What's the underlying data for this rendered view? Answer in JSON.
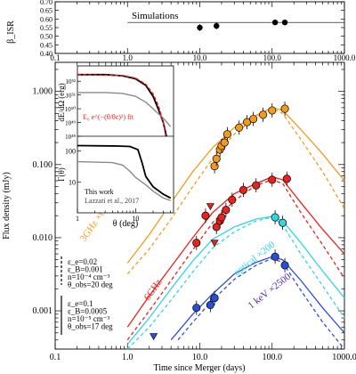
{
  "colors": {
    "orange": "#f39a1e",
    "red": "#e8221d",
    "cyan": "#32d4e6",
    "blue": "#2a4ed6",
    "gray": "#8a8a8a",
    "black": "#000000"
  },
  "chart_data": [
    {
      "type": "scatter",
      "panel": "top",
      "ylabel": "β_ISR",
      "xlim": [
        0.1,
        1000
      ],
      "ylim": [
        0.4,
        0.7
      ],
      "xscale": "log",
      "yticks": [
        "0.40",
        "0.45",
        "0.50",
        "0.55",
        "0.60",
        "0.65",
        "0.70"
      ],
      "annotation": "Simulations",
      "reference_line": {
        "y": 0.58,
        "x_range": [
          1,
          1000
        ]
      },
      "points": [
        {
          "x": 10,
          "y": 0.55,
          "yerr": 0.02
        },
        {
          "x": 17,
          "y": 0.56,
          "yerr": 0.02
        },
        {
          "x": 110,
          "y": 0.58,
          "yerr": 0.01
        },
        {
          "x": 150,
          "y": 0.58,
          "yerr": 0.01
        }
      ]
    },
    {
      "type": "line",
      "panel": "main",
      "xlabel": "Time since Merger (days)",
      "ylabel": "Flux density (mJy)",
      "xlim": [
        0.1,
        1000
      ],
      "ylim": [
        0.0003,
        2.5
      ],
      "xscale": "log",
      "yscale": "log",
      "xticks": [
        "0.1",
        "1.0",
        "10.0",
        "100.0",
        "1000.0"
      ],
      "yticks": [
        "0.001",
        "0.010",
        "0.100",
        "1.000"
      ],
      "legend": [
        {
          "style": "dashed",
          "lines": [
            "ε_e=0.02",
            "ε_B=0.001",
            "n=10⁻⁴ cm⁻³",
            "θ_obs=20 deg"
          ]
        },
        {
          "style": "solid",
          "lines": [
            "ε_e=0.1",
            "ε_B=0.0005",
            "n=10⁻⁵ cm⁻³",
            "θ_obs=17 deg"
          ]
        }
      ],
      "series": [
        {
          "name": "3GHz ×6",
          "color_key": "orange",
          "solid": [
            [
              1,
              0.0045
            ],
            [
              2,
              0.011
            ],
            [
              4,
              0.03
            ],
            [
              8,
              0.08
            ],
            [
              15,
              0.17
            ],
            [
              30,
              0.32
            ],
            [
              60,
              0.47
            ],
            [
              100,
              0.6
            ],
            [
              140,
              0.55
            ],
            [
              250,
              0.3
            ],
            [
              500,
              0.14
            ],
            [
              1000,
              0.06
            ]
          ],
          "dashed": [
            [
              1,
              0.0032
            ],
            [
              2,
              0.007
            ],
            [
              4,
              0.018
            ],
            [
              8,
              0.05
            ],
            [
              15,
              0.12
            ],
            [
              30,
              0.26
            ],
            [
              60,
              0.45
            ],
            [
              100,
              0.58
            ],
            [
              140,
              0.5
            ],
            [
              250,
              0.22
            ],
            [
              500,
              0.08
            ],
            [
              1000,
              0.025
            ]
          ],
          "points": [
            [
              16,
              0.095
            ],
            [
              17,
              0.12
            ],
            [
              19,
              0.16
            ],
            [
              20,
              0.18
            ],
            [
              22,
              0.2
            ],
            [
              24,
              0.26
            ],
            [
              35,
              0.32
            ],
            [
              45,
              0.38
            ],
            [
              55,
              0.42
            ],
            [
              75,
              0.48
            ],
            [
              100,
              0.55
            ],
            [
              150,
              0.58
            ]
          ]
        },
        {
          "name": "6GHz",
          "color_key": "red",
          "solid": [
            [
              1,
              0.0006
            ],
            [
              2,
              0.0016
            ],
            [
              4,
              0.004
            ],
            [
              8,
              0.01
            ],
            [
              15,
              0.022
            ],
            [
              30,
              0.04
            ],
            [
              60,
              0.055
            ],
            [
              100,
              0.068
            ],
            [
              140,
              0.062
            ],
            [
              250,
              0.03
            ],
            [
              500,
              0.013
            ],
            [
              1000,
              0.006
            ]
          ],
          "dashed": [
            [
              1,
              0.0004
            ],
            [
              2,
              0.001
            ],
            [
              4,
              0.0026
            ],
            [
              8,
              0.0068
            ],
            [
              15,
              0.016
            ],
            [
              30,
              0.032
            ],
            [
              60,
              0.052
            ],
            [
              100,
              0.062
            ],
            [
              140,
              0.055
            ],
            [
              250,
              0.022
            ],
            [
              500,
              0.008
            ],
            [
              1000,
              0.0028
            ]
          ],
          "points": [
            [
              9,
              0.0085
            ],
            [
              12,
              0.02
            ],
            [
              17,
              0.014
            ],
            [
              19,
              0.017
            ],
            [
              20,
              0.019
            ],
            [
              23,
              0.024
            ],
            [
              28,
              0.033
            ],
            [
              40,
              0.045
            ],
            [
              60,
              0.052
            ],
            [
              100,
              0.062
            ],
            [
              160,
              0.064
            ]
          ],
          "upper_limits": [
            [
              14,
              0.027
            ],
            [
              16,
              0.0085
            ]
          ]
        },
        {
          "name": "optical ×200",
          "color_key": "cyan",
          "solid": [
            [
              1,
              0.00035
            ],
            [
              2,
              0.0008
            ],
            [
              4,
              0.002
            ],
            [
              8,
              0.0048
            ],
            [
              15,
              0.0095
            ],
            [
              30,
              0.014
            ],
            [
              60,
              0.018
            ],
            [
              100,
              0.0195
            ],
            [
              140,
              0.017
            ],
            [
              250,
              0.0085
            ],
            [
              500,
              0.0035
            ],
            [
              1000,
              0.0015
            ]
          ],
          "dashed": [
            [
              1,
              0.0003
            ],
            [
              2,
              0.0006
            ],
            [
              4,
              0.0014
            ],
            [
              8,
              0.0034
            ],
            [
              15,
              0.0072
            ],
            [
              30,
              0.012
            ],
            [
              60,
              0.017
            ],
            [
              100,
              0.019
            ],
            [
              140,
              0.015
            ],
            [
              250,
              0.006
            ],
            [
              500,
              0.0022
            ],
            [
              1000,
              0.0008
            ]
          ],
          "points": [
            [
              110,
              0.019
            ],
            [
              140,
              0.016
            ]
          ]
        },
        {
          "name": "1 keV ×2500",
          "color_key": "blue",
          "solid": [
            [
              4,
              0.0004
            ],
            [
              8,
              0.0009
            ],
            [
              15,
              0.0017
            ],
            [
              30,
              0.0032
            ],
            [
              60,
              0.0046
            ],
            [
              100,
              0.0055
            ],
            [
              140,
              0.005
            ],
            [
              250,
              0.0026
            ],
            [
              500,
              0.0011
            ],
            [
              1000,
              0.0005
            ]
          ],
          "dashed": [
            [
              5,
              0.0004
            ],
            [
              8,
              0.0007
            ],
            [
              15,
              0.0014
            ],
            [
              30,
              0.0027
            ],
            [
              60,
              0.0042
            ],
            [
              100,
              0.0052
            ],
            [
              140,
              0.0046
            ],
            [
              250,
              0.0019
            ],
            [
              500,
              0.0007
            ],
            [
              1000,
              0.0003
            ]
          ],
          "points": [
            [
              9,
              0.0011
            ],
            [
              14,
              0.0012
            ],
            [
              16,
              0.0015
            ],
            [
              110,
              0.0055
            ],
            [
              150,
              0.0042
            ]
          ],
          "upper_limits": [
            [
              2.3,
              0.00045
            ]
          ]
        }
      ]
    },
    {
      "type": "line",
      "panel": "inset-top",
      "ylabel": "dE/dΩ (erg)",
      "yscale": "log",
      "xscale": "log",
      "ylim": [
        1e+48,
        1e+53
      ],
      "yticks": [
        "10⁴⁸",
        "10⁴⁹",
        "10⁵⁰",
        "10⁵¹",
        "10⁵²"
      ],
      "annotation": "E₀ e^(−(θ/θc)²) fit",
      "series": [
        {
          "name": "",
          "color_key": "black",
          "points": [
            [
              1,
              3e+52
            ],
            [
              3,
              3e+52
            ],
            [
              6,
              2.5e+52
            ],
            [
              10,
              1.5e+52
            ],
            [
              15,
              5e+51
            ],
            [
              20,
              8e+50
            ],
            [
              25,
              8e+49
            ],
            [
              30,
              1e+49
            ],
            [
              34,
              1e+48
            ]
          ]
        },
        {
          "name": "",
          "color_key": "gray",
          "points": [
            [
              1,
              1.5e+51
            ],
            [
              3,
              1.5e+51
            ],
            [
              6,
              1.3e+51
            ],
            [
              10,
              8e+50
            ],
            [
              15,
              3e+50
            ],
            [
              20,
              1e+50
            ],
            [
              30,
              2e+49
            ],
            [
              40,
              5e+48
            ]
          ]
        },
        {
          "name": "",
          "color_key": "red",
          "style": "dashed",
          "points": [
            [
              1,
              3e+52
            ],
            [
              6,
              2.6e+52
            ],
            [
              10,
              1.7e+52
            ],
            [
              15,
              6e+51
            ],
            [
              20,
              1.2e+51
            ],
            [
              25,
              1.5e+50
            ],
            [
              30,
              1e+49
            ],
            [
              33,
              1e+48
            ]
          ]
        }
      ]
    },
    {
      "type": "line",
      "panel": "inset-bottom",
      "xlabel": "θ (deg)",
      "ylabel": "Γ(θ)",
      "xscale": "log",
      "yscale": "log",
      "ylim": [
        1,
        300
      ],
      "yticks": [
        "10",
        "100"
      ],
      "xticks": [
        "1",
        "10"
      ],
      "legend": [
        "This work",
        "Lazzati et al., 2017"
      ],
      "series": [
        {
          "name": "This work",
          "color_key": "black",
          "points": [
            [
              1,
              150
            ],
            [
              5,
              145
            ],
            [
              8,
              140
            ],
            [
              11,
              110
            ],
            [
              13,
              40
            ],
            [
              15,
              15
            ],
            [
              20,
              7
            ],
            [
              30,
              4
            ],
            [
              40,
              3
            ]
          ]
        },
        {
          "name": "Lazzati et al., 2017",
          "color_key": "gray",
          "points": [
            [
              1,
              45
            ],
            [
              4,
              42
            ],
            [
              6,
              35
            ],
            [
              8,
              22
            ],
            [
              10,
              14
            ],
            [
              15,
              8
            ],
            [
              20,
              5
            ],
            [
              30,
              3
            ],
            [
              40,
              2.5
            ]
          ]
        }
      ]
    }
  ]
}
